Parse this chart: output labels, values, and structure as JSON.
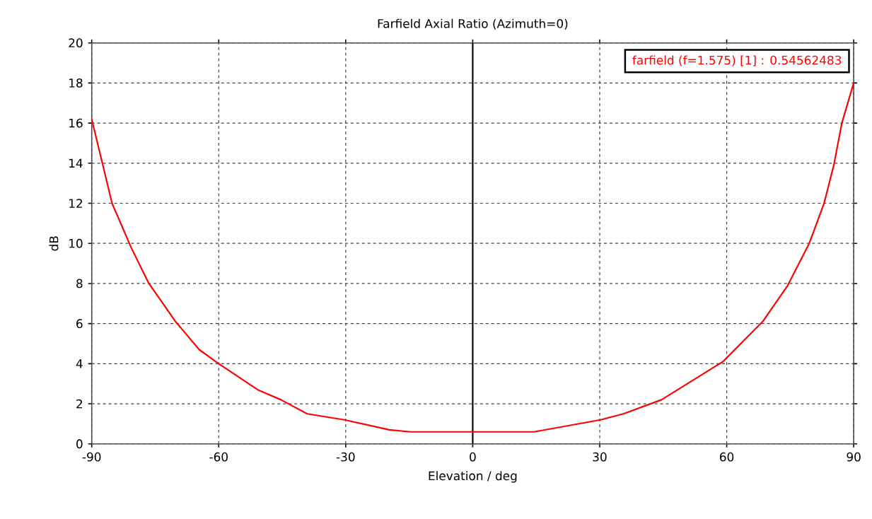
{
  "chart_data": {
    "type": "line",
    "title": "Farfield  Axial Ratio (Azimuth=0)",
    "xlabel": "Elevation / deg",
    "ylabel": "dB",
    "xlim": [
      -90,
      90
    ],
    "ylim": [
      0,
      20
    ],
    "xticks": [
      -90,
      -60,
      -30,
      0,
      30,
      60,
      90
    ],
    "yticks": [
      0,
      2,
      4,
      6,
      8,
      10,
      12,
      14,
      16,
      18,
      20
    ],
    "grid": true,
    "legend": "top right",
    "line_style": "solid",
    "marker": "none",
    "ref_lines": [
      {
        "axis": "x",
        "value": 0,
        "color": "#000000"
      }
    ],
    "series": [
      {
        "name": "farfield (f=1.575) [1] : 0.54562483",
        "color": "#ff0000",
        "x": [
          -90,
          -85.2,
          -80.7,
          -76.5,
          -74.5,
          -70.2,
          -64.6,
          -60,
          -50.8,
          -45.3,
          -39.1,
          -30.3,
          -19.7,
          -14.7,
          0,
          14.5,
          30.2,
          35.6,
          44.6,
          59.1,
          68.5,
          74.4,
          79.5,
          83.0,
          85.3,
          87.2,
          90
        ],
        "values": [
          16.2,
          12.0,
          9.8,
          8.0,
          7.4,
          6.1,
          4.7,
          4.0,
          2.7,
          2.2,
          1.5,
          1.2,
          0.7,
          0.6,
          0.6,
          0.6,
          1.2,
          1.5,
          2.2,
          4.1,
          6.1,
          7.9,
          10.0,
          12.0,
          13.9,
          16.0,
          18.0
        ]
      }
    ]
  }
}
